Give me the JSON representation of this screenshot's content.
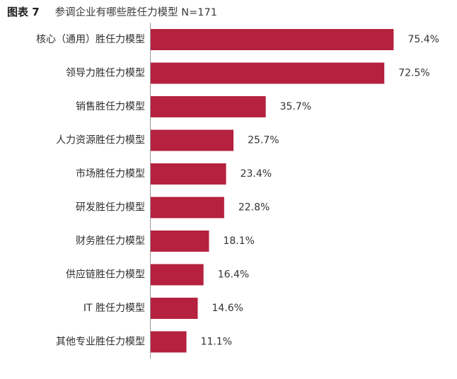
{
  "figure": {
    "label": "图表 7",
    "title": "参调企业有哪些胜任力模型 N=171"
  },
  "colors": {
    "bar": "#b5213f",
    "axis": "#9a9a9a",
    "text": "#333333"
  },
  "chart_data": {
    "type": "bar",
    "orientation": "horizontal",
    "title": "参调企业有哪些胜任力模型 N=171",
    "xlabel": "",
    "ylabel": "",
    "xlim": [
      0,
      80
    ],
    "grid": false,
    "legend": "none",
    "categories": [
      "核心（通用）胜任力模型",
      "领导力胜任力模型",
      "销售胜任力模型",
      "人力资源胜任力模型",
      "市场胜任力模型",
      "研发胜任力模型",
      "财务胜任力模型",
      "供应链胜任力模型",
      "IT 胜任力模型",
      "其他专业胜任力模型"
    ],
    "values": [
      75.4,
      72.5,
      35.7,
      25.7,
      23.4,
      22.8,
      18.1,
      16.4,
      14.6,
      11.1
    ],
    "value_labels": [
      "75.4%",
      "72.5%",
      "35.7%",
      "25.7%",
      "23.4%",
      "22.8%",
      "18.1%",
      "16.4%",
      "14.6%",
      "11.1%"
    ]
  }
}
